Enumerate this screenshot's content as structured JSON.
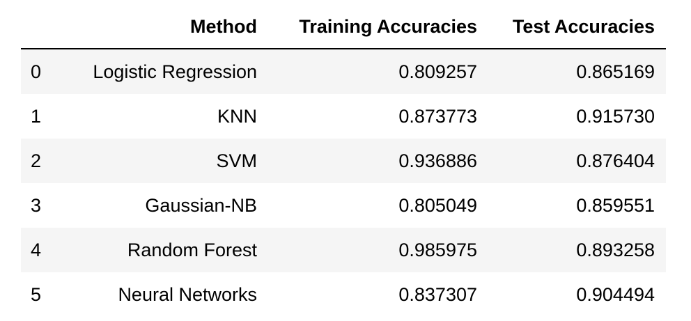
{
  "table": {
    "columns": [
      "",
      "Method",
      "Training Accuracies",
      "Test Accuracies"
    ],
    "rows": [
      {
        "index": "0",
        "method": "Logistic Regression",
        "train": "0.809257",
        "test": "0.865169"
      },
      {
        "index": "1",
        "method": "KNN",
        "train": "0.873773",
        "test": "0.915730"
      },
      {
        "index": "2",
        "method": "SVM",
        "train": "0.936886",
        "test": "0.876404"
      },
      {
        "index": "3",
        "method": "Gaussian-NB",
        "train": "0.805049",
        "test": "0.859551"
      },
      {
        "index": "4",
        "method": "Random Forest",
        "train": "0.985975",
        "test": "0.893258"
      },
      {
        "index": "5",
        "method": "Neural Networks",
        "train": "0.837307",
        "test": "0.904494"
      }
    ],
    "colors": {
      "odd_row_background": "#f5f5f5",
      "even_row_background": "#ffffff",
      "header_rule": "#000000"
    }
  }
}
